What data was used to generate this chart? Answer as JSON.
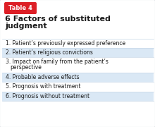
{
  "table_label": "Table 4",
  "title_line1": "6 Factors of substituted",
  "title_line2": "judgment",
  "items": [
    "1. Patient’s previously expressed preference",
    "2. Patient’s religious convictions",
    "3. Impact on family from the patient’s\n   perspective",
    "4. Probable adverse effects",
    "5. Prognosis with treatment",
    "6. Prognosis without treatment"
  ],
  "row_colors": [
    "#ffffff",
    "#dae8f5",
    "#ffffff",
    "#dae8f5",
    "#ffffff",
    "#dae8f5"
  ],
  "table_label_bg": "#dd1f26",
  "table_label_color": "#ffffff",
  "title_color": "#1a1a1a",
  "item_color": "#1a1a1a",
  "border_color": "#b0b8c0",
  "background_color": "#ffffff",
  "divider_color": "#c8d8e8"
}
